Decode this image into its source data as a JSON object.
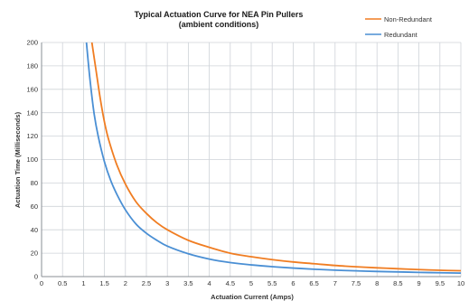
{
  "chart_data": {
    "type": "line",
    "title": "Typical Actuation Curve for NEA Pin Pullers",
    "subtitle": "(ambient conditions)",
    "xlabel": "Actuation Current (Amps)",
    "ylabel": "Actuation Time (Milliseconds)",
    "xlim": [
      0,
      10
    ],
    "ylim": [
      0,
      200
    ],
    "x_ticks": [
      "0",
      "0.5",
      "1",
      "1.5",
      "2",
      "2.5",
      "3",
      "3.5",
      "4",
      "4.5",
      "5",
      "5.5",
      "6",
      "6.5",
      "7",
      "7.5",
      "8",
      "8.5",
      "9",
      "9.5",
      "10"
    ],
    "y_ticks": [
      "0",
      "20",
      "40",
      "60",
      "80",
      "100",
      "120",
      "140",
      "160",
      "180",
      "200"
    ],
    "grid": true,
    "legend_position": "top-right",
    "series": [
      {
        "name": "Non-Redundant",
        "color": "#f07d22",
        "x": [
          1.2,
          1.3,
          1.4,
          1.5,
          1.6,
          1.8,
          2.0,
          2.25,
          2.5,
          2.75,
          3.0,
          3.5,
          4.0,
          4.5,
          5.0,
          5.5,
          6.0,
          6.5,
          7.0,
          7.5,
          8.0,
          8.5,
          9.0,
          9.5,
          10.0
        ],
        "y": [
          200,
          176,
          152,
          132,
          117,
          95,
          79,
          64,
          54,
          46,
          40,
          31,
          25,
          20,
          17,
          14.5,
          12.5,
          11,
          9.5,
          8.4,
          7.5,
          6.7,
          6,
          5.4,
          5
        ]
      },
      {
        "name": "Redundant",
        "color": "#4a8fd4",
        "x": [
          1.07,
          1.15,
          1.25,
          1.35,
          1.5,
          1.65,
          1.8,
          2.0,
          2.25,
          2.5,
          2.75,
          3.0,
          3.5,
          4.0,
          4.5,
          5.0,
          5.5,
          6.0,
          6.5,
          7.0,
          7.5,
          8.0,
          8.5,
          9.0,
          9.5,
          10.0
        ],
        "y": [
          200,
          170,
          140,
          120,
          98,
          82,
          70,
          57,
          45,
          37,
          31,
          26,
          19.5,
          15,
          12,
          10,
          8.5,
          7.3,
          6.3,
          5.5,
          4.9,
          4.4,
          4,
          3.6,
          3.3,
          3
        ]
      }
    ]
  }
}
